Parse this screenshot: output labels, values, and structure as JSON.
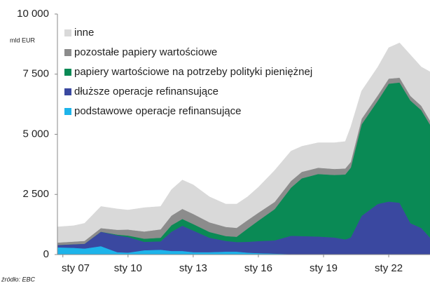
{
  "chart_data": {
    "type": "stacked_area",
    "y_unit_label": "mld EUR",
    "source": "źródło: EBC",
    "x": [
      2006.75,
      2007.5,
      2008.0,
      2008.75,
      2009.5,
      2010.0,
      2010.75,
      2011.5,
      2012.0,
      2012.5,
      2013.0,
      2013.75,
      2014.5,
      2015.0,
      2015.5,
      2016.0,
      2016.75,
      2017.5,
      2018.0,
      2018.75,
      2019.5,
      2020.0,
      2020.25,
      2020.75,
      2021.5,
      2022.0,
      2022.5,
      2023.0,
      2023.5,
      2023.9
    ],
    "series": [
      {
        "name": "podstawowe operacje refinansujące",
        "color": "#1db4ea",
        "values": [
          300,
          280,
          250,
          350,
          100,
          80,
          180,
          200,
          150,
          150,
          100,
          100,
          120,
          120,
          80,
          60,
          40,
          20,
          10,
          10,
          10,
          10,
          10,
          10,
          5,
          5,
          5,
          5,
          5,
          5
        ]
      },
      {
        "name": "dłuższe operacje refinansujące",
        "color": "#3a48a0",
        "values": [
          100,
          150,
          200,
          600,
          700,
          650,
          350,
          350,
          800,
          1050,
          900,
          600,
          450,
          400,
          450,
          500,
          550,
          760,
          760,
          740,
          700,
          620,
          700,
          1600,
          2100,
          2200,
          2150,
          1300,
          1100,
          700
        ]
      },
      {
        "name": "papiery wartościowe na potrzeby polityki pieniężnej",
        "color": "#0a8a55",
        "values": [
          0,
          0,
          0,
          0,
          30,
          60,
          130,
          150,
          270,
          280,
          270,
          240,
          200,
          220,
          550,
          850,
          1300,
          2000,
          2400,
          2600,
          2600,
          2700,
          2900,
          3800,
          4300,
          4900,
          5000,
          5100,
          4900,
          4700
        ]
      },
      {
        "name": "pozostałe papiery wartościowe",
        "color": "#8c8c8c",
        "values": [
          100,
          110,
          120,
          150,
          200,
          250,
          300,
          350,
          400,
          420,
          420,
          400,
          380,
          370,
          350,
          330,
          300,
          280,
          270,
          260,
          250,
          250,
          240,
          230,
          220,
          210,
          200,
          190,
          180,
          170
        ]
      },
      {
        "name": "inne",
        "color": "#d9d9d9",
        "values": [
          650,
          660,
          730,
          900,
          870,
          810,
          990,
          950,
          1080,
          1200,
          1210,
          1060,
          950,
          990,
          970,
          1060,
          1310,
          1240,
          1060,
          1040,
          1090,
          1120,
          1450,
          1160,
          1175,
          1285,
          1445,
          1705,
          1615,
          2025
        ]
      }
    ],
    "xlim": [
      2006.75,
      2023.9
    ],
    "xticks": [
      {
        "value": 2007,
        "label": "sty 07"
      },
      {
        "value": 2010,
        "label": "sty 10"
      },
      {
        "value": 2013,
        "label": "sty 13"
      },
      {
        "value": 2016,
        "label": "sty 16"
      },
      {
        "value": 2019,
        "label": "sty 19"
      },
      {
        "value": 2022,
        "label": "sty 22"
      }
    ],
    "ylim": [
      0,
      10000
    ],
    "yticks": [
      0,
      {
        "value": 2500,
        "label": "2 500"
      },
      {
        "value": 5000,
        "label": "5 000"
      },
      {
        "value": 7500,
        "label": "7 500"
      },
      {
        "value": 10000,
        "label": "10 000"
      }
    ],
    "grid": false,
    "legend": "upper-left"
  }
}
